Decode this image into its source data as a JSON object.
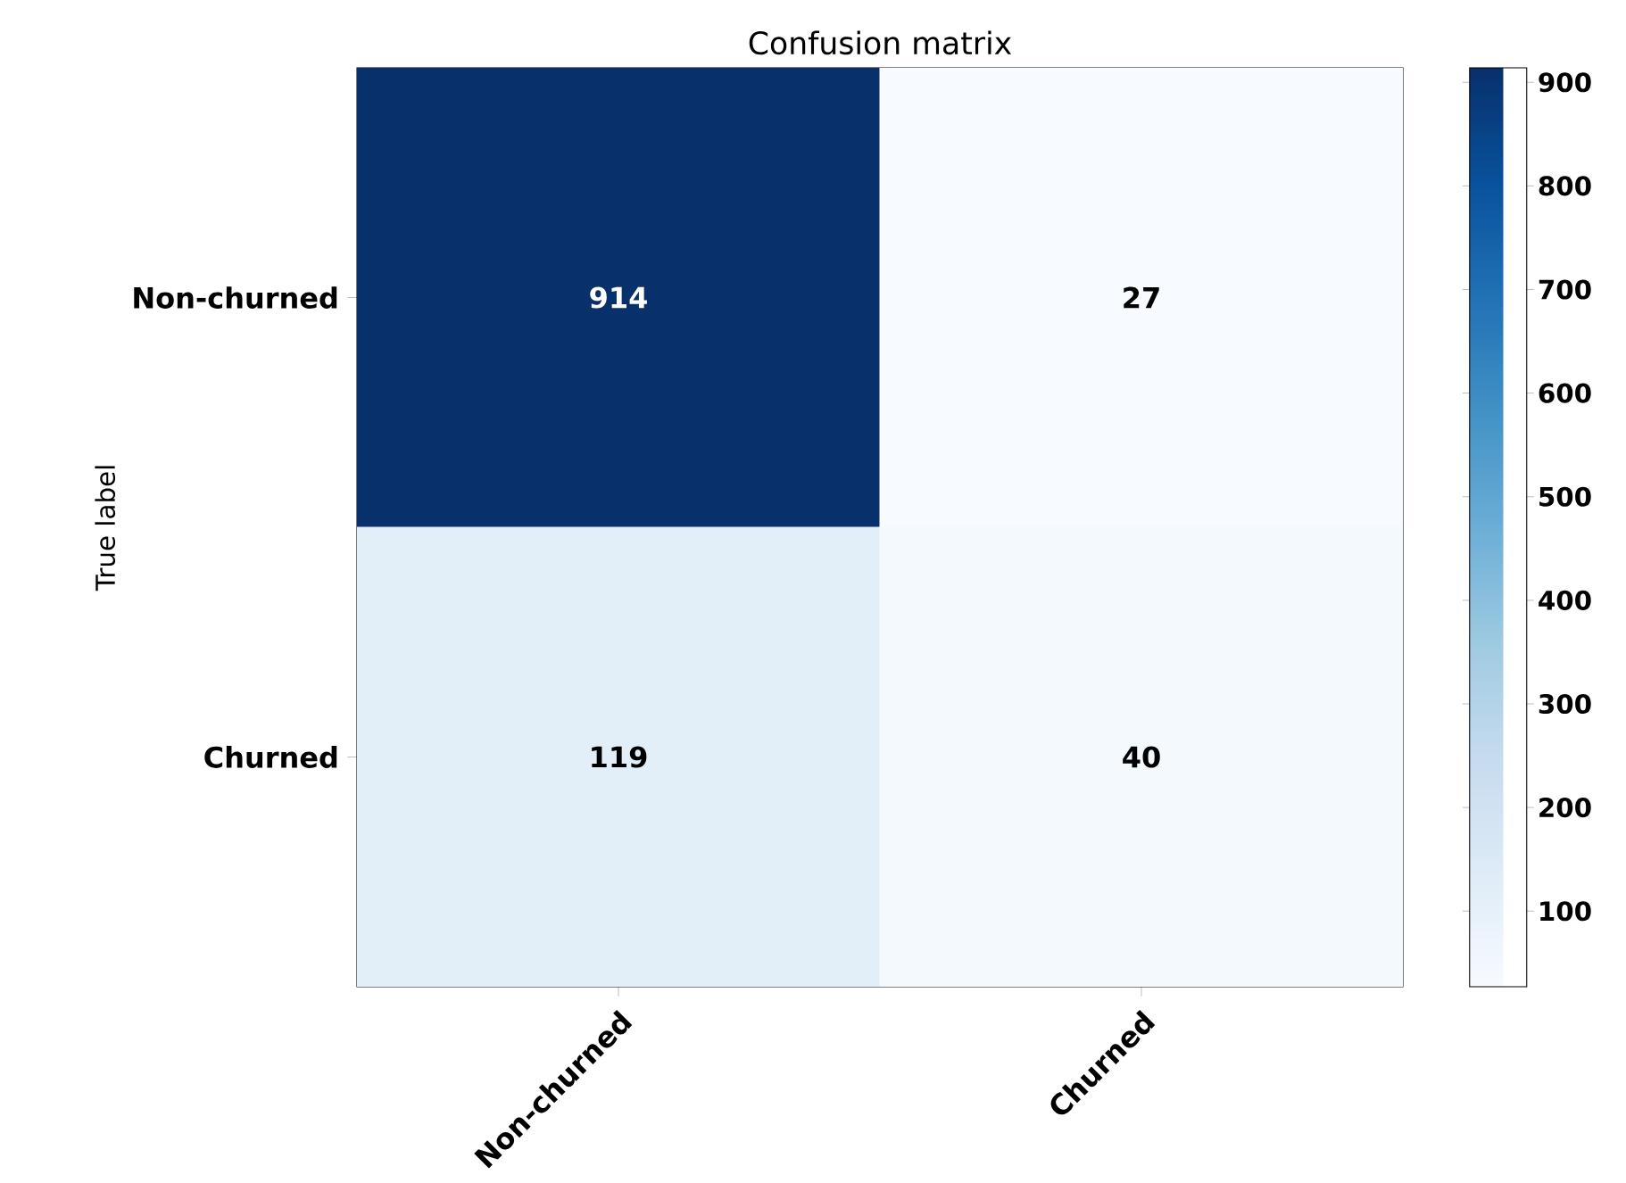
{
  "chart_data": {
    "type": "heatmap",
    "title": "Confusion matrix",
    "ylabel": "True label",
    "categories": [
      "Non-churned",
      "Churned"
    ],
    "y_categories": [
      "Non-churned",
      "Churned"
    ],
    "cells": [
      [
        914,
        27
      ],
      [
        119,
        40
      ]
    ],
    "clim": [
      27,
      914
    ],
    "cticks": [
      100,
      200,
      300,
      400,
      500,
      600,
      700,
      800,
      900
    ],
    "data_labels": true
  }
}
